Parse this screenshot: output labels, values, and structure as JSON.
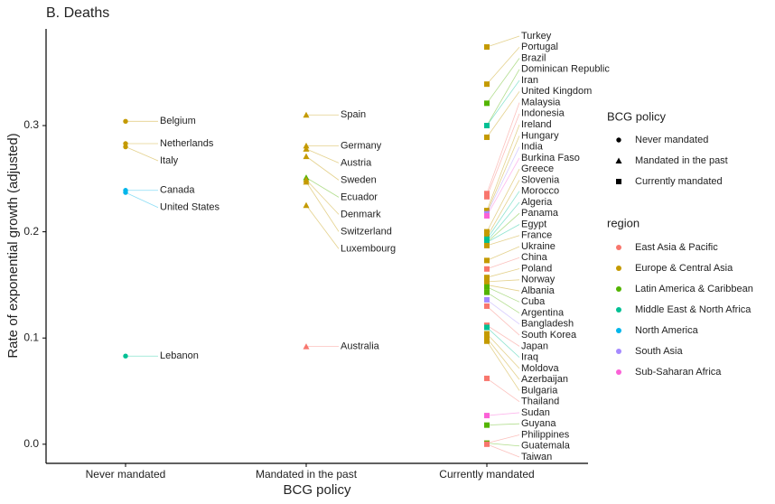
{
  "chart_data": {
    "type": "strip",
    "title": "B. Deaths",
    "x_label": "BCG policy",
    "y_label": "Rate of exponential growth (adjusted)",
    "categories": [
      "Never mandated",
      "Mandated in the past",
      "Currently mandated"
    ],
    "shapes": [
      "circle",
      "triangle",
      "square"
    ],
    "shape_legend_title": "BCG policy",
    "color_legend_title": "region",
    "ylim": [
      -0.018,
      0.391
    ],
    "yticks": [
      {
        "value": 0,
        "label": "0.0"
      },
      {
        "value": 0.1,
        "label": "0.1"
      },
      {
        "value": 0.2,
        "label": "0.2"
      },
      {
        "value": 0.3,
        "label": "0.3"
      }
    ],
    "series": [
      {
        "name": "East Asia & Pacific",
        "color": "#F8766D",
        "countries": [
          "Australia",
          "Malaysia",
          "Indonesia",
          "China",
          "South Korea",
          "Japan",
          "Thailand",
          "Philippines",
          "Taiwan"
        ],
        "policies": [
          "Mandated in the past",
          "Currently mandated",
          "Currently mandated",
          "Currently mandated",
          "Currently mandated",
          "Currently mandated",
          "Currently mandated",
          "Currently mandated",
          "Currently mandated"
        ],
        "values": [
          0.092,
          0.236,
          0.233,
          0.165,
          0.13,
          0.112,
          0.062,
          0.001,
          0.0
        ]
      },
      {
        "name": "Europe & Central Asia",
        "color": "#C49A00",
        "countries": [
          "Belgium",
          "Netherlands",
          "Italy",
          "Spain",
          "Germany",
          "Austria",
          "Sweden",
          "Denmark",
          "Switzerland",
          "Luxembourg",
          "Turkey",
          "Portugal",
          "United Kingdom",
          "Ireland",
          "Hungary",
          "Greece",
          "Slovenia",
          "France",
          "Ukraine",
          "Poland",
          "Norway",
          "Albania",
          "Moldova",
          "Azerbaijan",
          "Bulgaria"
        ],
        "policies": [
          "Never mandated",
          "Never mandated",
          "Never mandated",
          "Mandated in the past",
          "Mandated in the past",
          "Mandated in the past",
          "Mandated in the past",
          "Mandated in the past",
          "Mandated in the past",
          "Mandated in the past",
          "Currently mandated",
          "Currently mandated",
          "Currently mandated",
          "Currently mandated",
          "Currently mandated",
          "Currently mandated",
          "Currently mandated",
          "Currently mandated",
          "Currently mandated",
          "Currently mandated",
          "Currently mandated",
          "Currently mandated",
          "Currently mandated",
          "Currently mandated",
          "Currently mandated"
        ],
        "values": [
          0.304,
          0.283,
          0.28,
          0.31,
          0.281,
          0.278,
          0.271,
          0.249,
          0.247,
          0.225,
          0.374,
          0.339,
          0.289,
          0.22,
          0.218,
          0.2,
          0.195,
          0.187,
          0.173,
          0.157,
          0.153,
          0.15,
          0.104,
          0.1,
          0.097
        ]
      },
      {
        "name": "Latin America & Caribbean",
        "color": "#53B400",
        "countries": [
          "Ecuador",
          "Brazil",
          "Dominican Republic",
          "Panama",
          "Argentina",
          "Cuba",
          "Guyana",
          "Guatemala"
        ],
        "policies": [
          "Mandated in the past",
          "Currently mandated",
          "Currently mandated",
          "Currently mandated",
          "Currently mandated",
          "Currently mandated",
          "Currently mandated",
          "Currently mandated"
        ],
        "values": [
          0.251,
          0.321,
          0.3,
          0.19,
          0.143,
          0.148,
          0.018,
          0.001
        ]
      },
      {
        "name": "Middle East & North Africa",
        "color": "#00C094",
        "countries": [
          "Lebanon",
          "Iran",
          "Morocco",
          "Egypt",
          "Algeria",
          "Iraq"
        ],
        "policies": [
          "Never mandated",
          "Currently mandated",
          "Currently mandated",
          "Currently mandated",
          "Currently mandated",
          "Currently mandated"
        ],
        "values": [
          0.083,
          0.3,
          0.193,
          0.19,
          0.191,
          0.11
        ]
      },
      {
        "name": "North America",
        "color": "#00B6EB",
        "countries": [
          "Canada",
          "United States"
        ],
        "policies": [
          "Never mandated",
          "Never mandated"
        ],
        "values": [
          0.239,
          0.237
        ]
      },
      {
        "name": "South Asia",
        "color": "#A58AFF",
        "countries": [
          "India",
          "Bangladesh"
        ],
        "policies": [
          "Currently mandated",
          "Currently mandated"
        ],
        "values": [
          0.217,
          0.136
        ]
      },
      {
        "name": "Sub-Saharan Africa",
        "color": "#FB61D7",
        "countries": [
          "Burkina Faso",
          "Sudan"
        ],
        "policies": [
          "Currently mandated",
          "Currently mandated"
        ],
        "values": [
          0.215,
          0.027
        ]
      }
    ]
  }
}
